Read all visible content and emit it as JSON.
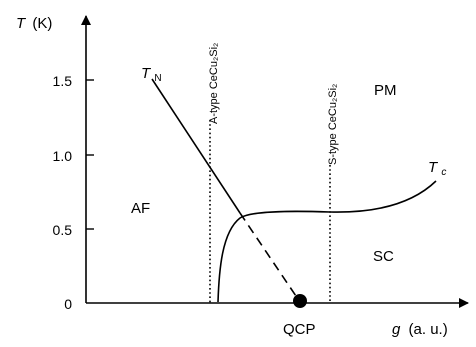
{
  "figure": {
    "y_axis_label": "T",
    "y_axis_unit": "(K)",
    "x_axis_label": "g",
    "x_axis_unit": "(a. u.)",
    "y_ticks": [
      "1.5",
      "1.0",
      "0.5",
      "0"
    ],
    "y_tick_values": [
      1.5,
      1.0,
      0.5,
      0
    ],
    "regions": {
      "af": "AF",
      "pm": "PM",
      "sc": "SC"
    },
    "qcp_label": "QCP",
    "tn_label": "T",
    "tn_subscript": "N",
    "tc_label": "T",
    "tc_subscript": "c",
    "a_type_label": "A-type CeCu₂Si₂",
    "s_type_label": "S-type CeCu₂Si₂"
  },
  "colors": {
    "ink": "#000000",
    "background": "#ffffff"
  }
}
